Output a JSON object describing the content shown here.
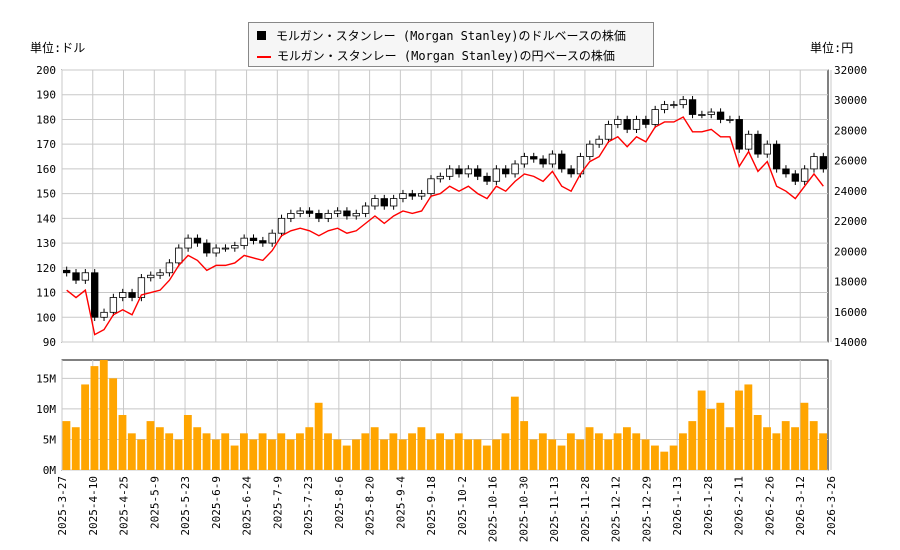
{
  "legend": {
    "dollar": "モルガン・スタンレー (Morgan Stanley)のドルベースの株価",
    "yen": "モルガン・スタンレー (Morgan Stanley)の円ベースの株価"
  },
  "units": {
    "left": "単位:ドル",
    "right": "単位:円"
  },
  "colors": {
    "candle": "#000000",
    "yen_line": "#ff0000",
    "volume": "#ffa500",
    "grid": "#c8c8c8"
  },
  "chart_data": [
    {
      "type": "line",
      "title": "",
      "start_date": "2025-3-27",
      "end_date": "2026-3-26",
      "ylim_left": [
        90,
        200
      ],
      "ylim_right": [
        14000,
        32000
      ],
      "left_ticks": [
        "90",
        "100",
        "110",
        "120",
        "130",
        "140",
        "150",
        "160",
        "170",
        "180",
        "190",
        "200"
      ],
      "right_ticks": [
        "14000",
        "16000",
        "18000",
        "20000",
        "22000",
        "24000",
        "26000",
        "28000",
        "30000",
        "32000"
      ],
      "grid": true,
      "legend_placement": "top-center",
      "series": [
        {
          "name": "モルガン・スタンレー (Morgan Stanley)のドルベースの株価",
          "style": "candlestick",
          "values": [
            118,
            115,
            118,
            100,
            102,
            108,
            110,
            108,
            116,
            117,
            118,
            122,
            128,
            132,
            130,
            126,
            128,
            128,
            129,
            132,
            131,
            130,
            134,
            140,
            142,
            143,
            142,
            140,
            142,
            143,
            141,
            142,
            145,
            148,
            145,
            148,
            150,
            149,
            150,
            156,
            157,
            160,
            158,
            160,
            157,
            155,
            160,
            158,
            162,
            165,
            164,
            162,
            166,
            160,
            158,
            165,
            170,
            172,
            178,
            180,
            176,
            180,
            178,
            184,
            186,
            186,
            188,
            182,
            182,
            183,
            180,
            180,
            168,
            174,
            166,
            170,
            160,
            158,
            155,
            160,
            165,
            160
          ]
        },
        {
          "name": "モルガン・スタンレー (Morgan Stanley)の円ベースの株価",
          "style": "line",
          "values": [
            17430,
            16940,
            17430,
            14490,
            14820,
            15800,
            16130,
            15800,
            17110,
            17270,
            17430,
            18090,
            19070,
            19730,
            19400,
            18740,
            19070,
            19070,
            19230,
            19730,
            19560,
            19400,
            20050,
            21030,
            21360,
            21530,
            21360,
            21030,
            21360,
            21530,
            21200,
            21360,
            21850,
            22340,
            21850,
            22340,
            22670,
            22510,
            22670,
            23650,
            23820,
            24310,
            23980,
            24310,
            23820,
            23490,
            24310,
            23980,
            24630,
            25120,
            24960,
            24630,
            25290,
            24310,
            23980,
            25120,
            25940,
            26270,
            27250,
            27580,
            26920,
            27580,
            27250,
            28230,
            28560,
            28560,
            28890,
            27910,
            27910,
            28070,
            27580,
            27580,
            25620,
            26600,
            25290,
            25940,
            24310,
            23980,
            23490,
            24310,
            25120,
            24310
          ]
        }
      ]
    },
    {
      "type": "bar",
      "ylim": [
        0,
        18
      ],
      "y_ticks": [
        "0M",
        "5M",
        "10M",
        "15M"
      ],
      "x_ticks": [
        "2025-3-27",
        "2025-4-10",
        "2025-4-25",
        "2025-5-9",
        "2025-5-23",
        "2025-6-9",
        "2025-6-24",
        "2025-7-9",
        "2025-7-23",
        "2025-8-6",
        "2025-8-20",
        "2025-9-4",
        "2025-9-18",
        "2025-10-2",
        "2025-10-16",
        "2025-10-30",
        "2025-11-13",
        "2025-11-28",
        "2025-12-12",
        "2025-12-29",
        "2026-1-13",
        "2026-1-28",
        "2026-2-11",
        "2026-2-26",
        "2026-3-12",
        "2026-3-26"
      ],
      "values": [
        8,
        7,
        14,
        17,
        18,
        15,
        9,
        6,
        5,
        8,
        7,
        6,
        5,
        9,
        7,
        6,
        5,
        6,
        4,
        6,
        5,
        6,
        5,
        6,
        5,
        6,
        7,
        11,
        6,
        5,
        4,
        5,
        6,
        7,
        5,
        6,
        5,
        6,
        7,
        5,
        6,
        5,
        6,
        5,
        5,
        4,
        5,
        6,
        12,
        8,
        5,
        6,
        5,
        4,
        6,
        5,
        7,
        6,
        5,
        6,
        7,
        6,
        5,
        4,
        3,
        4,
        6,
        8,
        13,
        10,
        11,
        7,
        13,
        14,
        9,
        7,
        6,
        8,
        7,
        11,
        8,
        6
      ]
    }
  ]
}
